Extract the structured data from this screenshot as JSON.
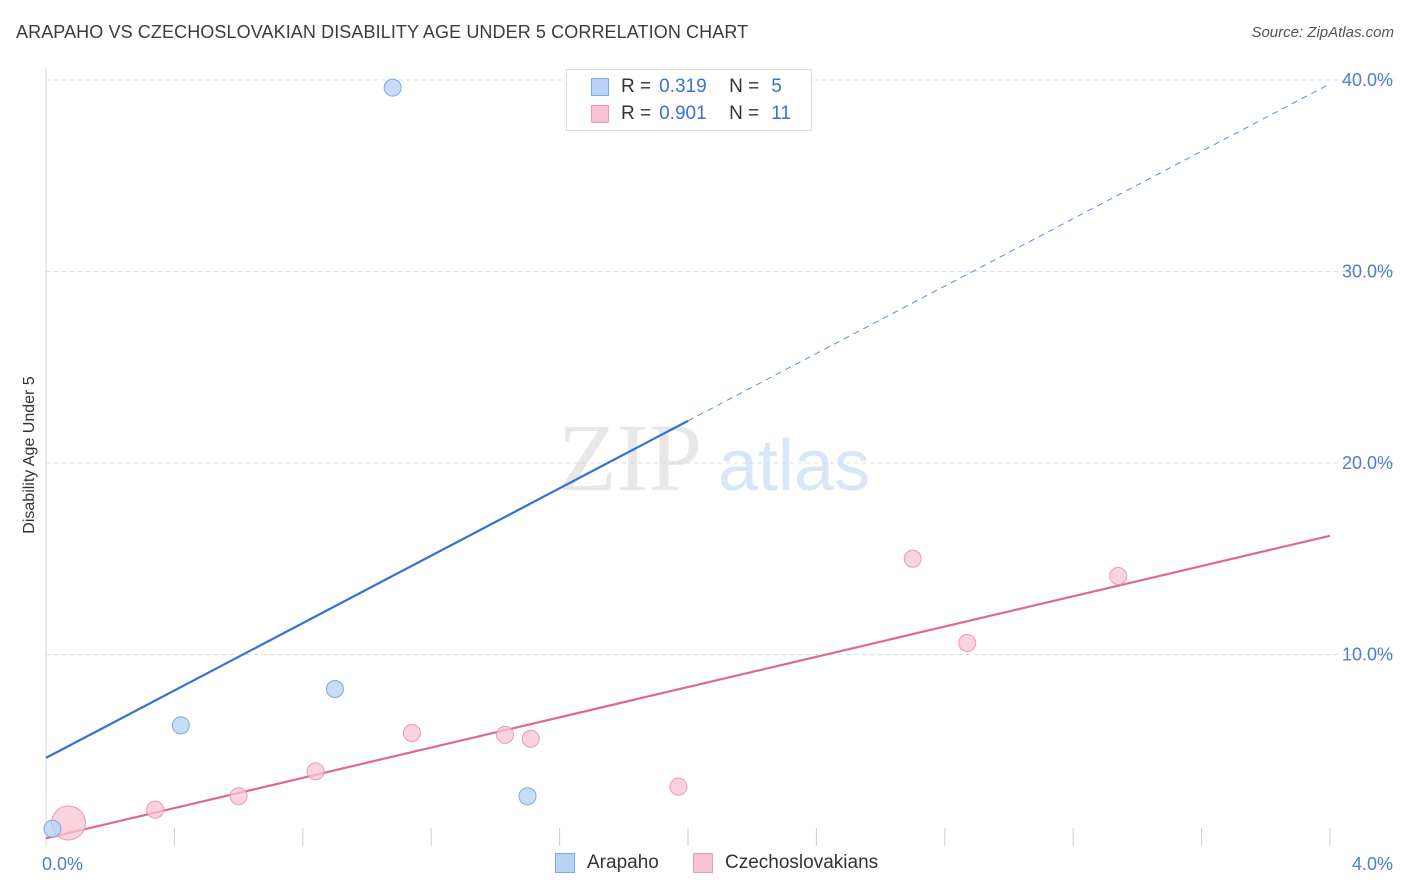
{
  "title": "ARAPAHO VS CZECHOSLOVAKIAN DISABILITY AGE UNDER 5 CORRELATION CHART",
  "source": "Source: ZipAtlas.com",
  "watermark": {
    "zip": "ZIP",
    "atlas": "atlas"
  },
  "colors": {
    "arapaho_fill": "#b8d3f5",
    "arapaho_stroke": "#7aaae6",
    "arapaho_line": "#2f74d0",
    "czech_fill": "#f8c4d4",
    "czech_stroke": "#eb9ab3",
    "czech_line": "#e0688f",
    "grid": "#dddddd",
    "tick_label": "#4a7fd0"
  },
  "legend": {
    "rows": [
      {
        "r_label": "R =",
        "r_value": "0.319",
        "n_label": "N =",
        "n_value": "5"
      },
      {
        "r_label": "R =",
        "r_value": "0.901",
        "n_label": "N =",
        "n_value": "11"
      }
    ]
  },
  "bottom_legend": {
    "arapaho": "Arapaho",
    "czech": "Czechoslovakians"
  },
  "chart_data": {
    "type": "scatter",
    "title": "ARAPAHO VS CZECHOSLOVAKIAN DISABILITY AGE UNDER 5 CORRELATION CHART",
    "xlabel": "",
    "ylabel": "Disability Age Under 5",
    "xlim": [
      0,
      4.0
    ],
    "ylim": [
      0,
      40.0
    ],
    "x_tick_labels": [
      "0.0%",
      "4.0%"
    ],
    "y_ticks": [
      10,
      20,
      30,
      40
    ],
    "y_tick_labels": [
      "10.0%",
      "20.0%",
      "30.0%",
      "40.0%"
    ],
    "grid": true,
    "legend_position": "top-center",
    "series": [
      {
        "name": "Arapaho",
        "points": [
          {
            "x": 0.02,
            "y": 0.9
          },
          {
            "x": 0.42,
            "y": 6.3
          },
          {
            "x": 0.9,
            "y": 8.2
          },
          {
            "x": 1.08,
            "y": 39.6
          },
          {
            "x": 1.5,
            "y": 2.6
          }
        ],
        "trend": {
          "x": [
            0.0,
            2.0,
            4.0
          ],
          "y": [
            4.6,
            22.2,
            39.8
          ],
          "solid_until_x": 2.0
        }
      },
      {
        "name": "Czechoslovakians",
        "points": [
          {
            "x": 0.07,
            "y": 1.2,
            "large": true
          },
          {
            "x": 0.34,
            "y": 1.9
          },
          {
            "x": 0.6,
            "y": 2.6
          },
          {
            "x": 0.84,
            "y": 3.9
          },
          {
            "x": 1.14,
            "y": 5.9
          },
          {
            "x": 1.43,
            "y": 5.8
          },
          {
            "x": 1.51,
            "y": 5.6
          },
          {
            "x": 1.97,
            "y": 3.1
          },
          {
            "x": 2.7,
            "y": 15.0
          },
          {
            "x": 2.87,
            "y": 10.6
          },
          {
            "x": 3.34,
            "y": 14.1
          }
        ],
        "trend": {
          "x": [
            0.0,
            4.0
          ],
          "y": [
            0.4,
            16.2
          ]
        }
      }
    ]
  }
}
